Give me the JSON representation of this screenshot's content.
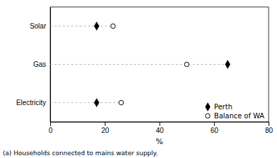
{
  "chart_data": {
    "type": "dot",
    "categories": [
      "Solar",
      "Gas",
      "Electricity"
    ],
    "series": [
      {
        "name": "Perth",
        "color": "#000000",
        "marker": "diamond",
        "values": [
          17,
          65,
          17
        ]
      },
      {
        "name": "Balance of WA",
        "color": "#000000",
        "marker": "open-circle",
        "values": [
          23,
          50,
          26
        ]
      }
    ],
    "xlabel": "%",
    "xlim": [
      0,
      80
    ],
    "xticks": [
      0,
      20,
      40,
      60,
      80
    ],
    "grid": false,
    "legend": "lower right",
    "footnote": "(a) Households connected to mains water supply."
  }
}
